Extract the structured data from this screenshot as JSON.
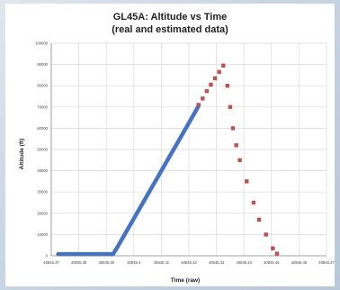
{
  "chart_data": {
    "type": "scatter",
    "title": "GL45A: Altitude vs Time",
    "subtitle": "(real and estimated data)",
    "xlabel": "Time (raw)",
    "ylabel": "Altitude (ft)",
    "xlim": [
      40845.37,
      40845.47
    ],
    "ylim": [
      0,
      100000
    ],
    "x_ticks": [
      40845.37,
      40845.38,
      40845.39,
      40845.4,
      40845.41,
      40845.42,
      40845.43,
      40845.44,
      40845.45,
      40845.46,
      40845.47
    ],
    "x_tick_labels": [
      "40845.37",
      "40845.38",
      "40845.39",
      "40845.4",
      "40845.41",
      "40845.42",
      "40845.43",
      "40845.44",
      "40845.45",
      "40845.46",
      "40845.47"
    ],
    "y_ticks": [
      0,
      10000,
      20000,
      30000,
      40000,
      50000,
      60000,
      70000,
      80000,
      90000,
      100000
    ],
    "y_tick_labels": [
      "0",
      "10000",
      "20000",
      "30000",
      "40000",
      "50000",
      "60000",
      "70000",
      "80000",
      "90000",
      "100000"
    ],
    "grid": true,
    "series": [
      {
        "color": "#4472c4",
        "marker": "line",
        "points": [
          [
            40845.3725,
            800
          ],
          [
            40845.375,
            800
          ],
          [
            40845.378,
            800
          ],
          [
            40845.381,
            800
          ],
          [
            40845.384,
            800
          ],
          [
            40845.387,
            800
          ],
          [
            40845.39,
            800
          ],
          [
            40845.3925,
            800
          ],
          [
            40845.394,
            4000
          ],
          [
            40845.396,
            8500
          ],
          [
            40845.398,
            13000
          ],
          [
            40845.4,
            17500
          ],
          [
            40845.402,
            22000
          ],
          [
            40845.404,
            26500
          ],
          [
            40845.406,
            31000
          ],
          [
            40845.408,
            35500
          ],
          [
            40845.41,
            40000
          ],
          [
            40845.412,
            44500
          ],
          [
            40845.414,
            49000
          ],
          [
            40845.416,
            53500
          ],
          [
            40845.418,
            58000
          ],
          [
            40845.42,
            62500
          ],
          [
            40845.422,
            67000
          ],
          [
            40845.4235,
            70500
          ]
        ]
      },
      {
        "color": "#c0504d",
        "marker": "square",
        "points": [
          [
            40845.4235,
            71000
          ],
          [
            40845.425,
            74000
          ],
          [
            40845.4265,
            77500
          ],
          [
            40845.428,
            80500
          ],
          [
            40845.4295,
            83500
          ],
          [
            40845.431,
            86500
          ],
          [
            40845.4325,
            89500
          ],
          [
            40845.434,
            80000
          ],
          [
            40845.435,
            70000
          ],
          [
            40845.436,
            60000
          ],
          [
            40845.4372,
            52000
          ],
          [
            40845.4385,
            45000
          ],
          [
            40845.441,
            35000
          ],
          [
            40845.4435,
            25000
          ],
          [
            40845.4455,
            17000
          ],
          [
            40845.448,
            10000
          ],
          [
            40845.4505,
            3500
          ],
          [
            40845.452,
            1000
          ]
        ]
      }
    ]
  }
}
